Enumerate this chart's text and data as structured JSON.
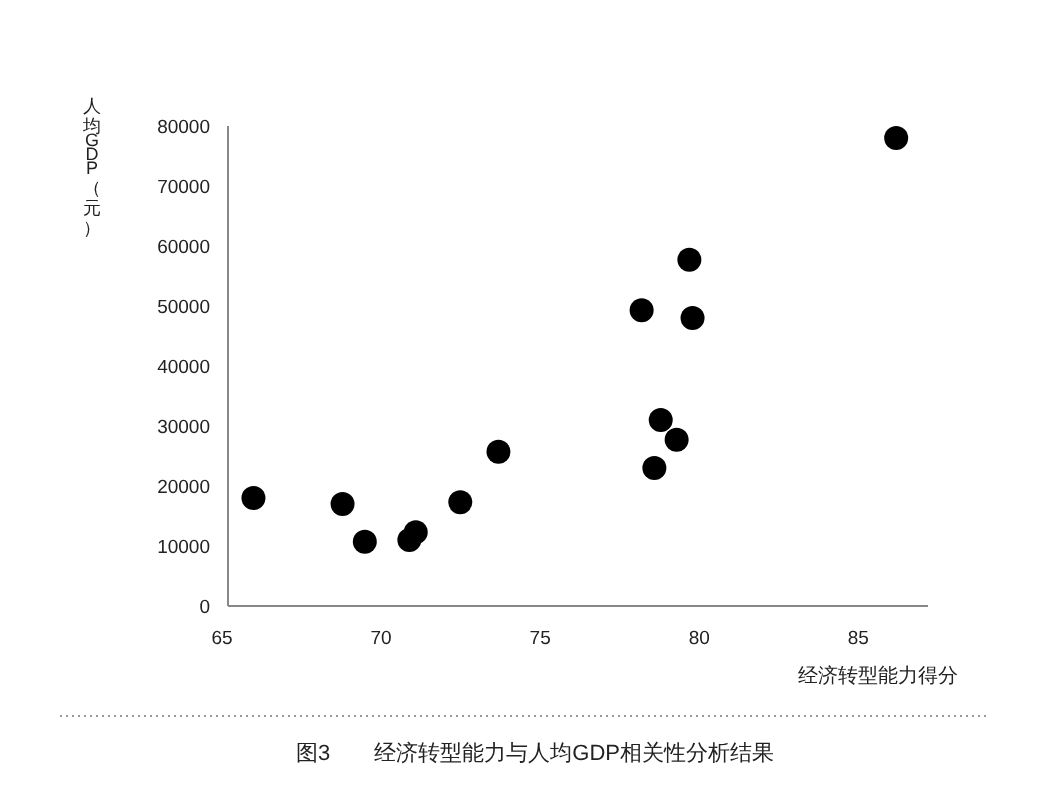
{
  "chart_data": {
    "type": "scatter",
    "xlabel": "经济转型能力得分",
    "ylabel": "人均GDP（元）",
    "x": [
      65.8,
      68.6,
      69.3,
      70.7,
      70.9,
      72.3,
      73.5,
      78.0,
      79.5,
      79.6,
      78.6,
      79.1,
      78.4,
      86.0
    ],
    "series": [
      {
        "color": "#000000",
        "values": [
          18000,
          17000,
          10700,
          11000,
          12300,
          17300,
          25700,
          49300,
          57700,
          48000,
          31000,
          27700,
          23000,
          78000
        ]
      }
    ],
    "xlim": [
      65,
      87
    ],
    "xticks": [
      65,
      70,
      75,
      80,
      85
    ],
    "ylim": [
      0,
      80000
    ],
    "yticks": [
      0,
      10000,
      20000,
      30000,
      40000,
      50000,
      60000,
      70000,
      80000
    ],
    "grid": false,
    "marker": "circle",
    "annotations": [
      "图3　　经济转型能力与人均GDP相关性分析结果"
    ]
  }
}
